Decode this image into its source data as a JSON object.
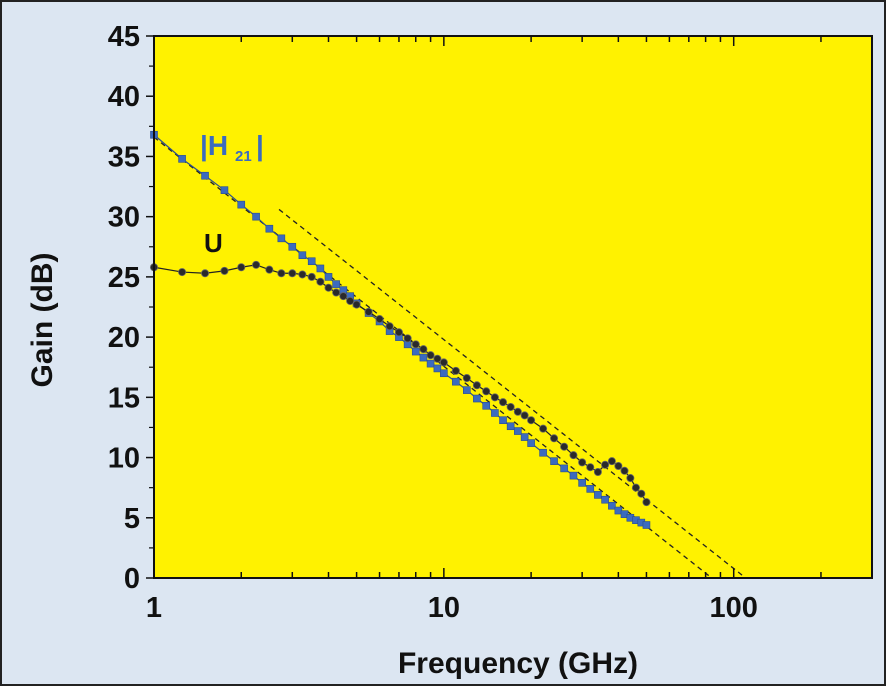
{
  "colors": {
    "background": "#dce6f2",
    "plot_area": "#fff200",
    "h21": "#3b6bbf",
    "u": "#1a1a1a"
  },
  "chart_data": {
    "type": "scatter",
    "title": "",
    "xlabel": "Frequency (GHz)",
    "ylabel": "Gain (dB)",
    "xscale": "log",
    "xlim": [
      1,
      300
    ],
    "ylim": [
      0,
      45
    ],
    "xticks": [
      1,
      10,
      100
    ],
    "xtick_labels": [
      "1",
      "10",
      "100"
    ],
    "yticks": [
      0,
      5,
      10,
      15,
      20,
      25,
      30,
      35,
      40,
      45
    ],
    "ytick_labels": [
      "0",
      "5",
      "10",
      "15",
      "20",
      "25",
      "30",
      "35",
      "40",
      "45"
    ],
    "grid": false,
    "legend": "none",
    "annotations": {
      "h21_label": "|H",
      "h21_sub": "21",
      "u_label": "U"
    },
    "series": [
      {
        "name": "|H21|",
        "marker": "square",
        "x": [
          1.0,
          1.25,
          1.5,
          1.75,
          2.0,
          2.25,
          2.5,
          2.75,
          3.0,
          3.25,
          3.5,
          3.75,
          4.0,
          4.25,
          4.5,
          4.75,
          5.0,
          5.5,
          6.0,
          6.5,
          7.0,
          7.5,
          8.0,
          8.5,
          9.0,
          9.5,
          10.0,
          11.0,
          12.0,
          13.0,
          14.0,
          15.0,
          16.0,
          17.0,
          18.0,
          19.0,
          20.0,
          22.0,
          24.0,
          26.0,
          28.0,
          30.0,
          32.0,
          34.0,
          36.0,
          38.0,
          40.0,
          42.0,
          44.0,
          46.0,
          48.0,
          50.0
        ],
        "y": [
          36.8,
          34.8,
          33.4,
          32.2,
          31.0,
          30.0,
          29.0,
          28.2,
          27.5,
          26.8,
          26.3,
          25.7,
          25.0,
          24.4,
          23.9,
          23.4,
          22.8,
          22.0,
          21.3,
          20.5,
          20.0,
          19.4,
          18.8,
          18.3,
          17.8,
          17.4,
          17.0,
          16.3,
          15.6,
          14.9,
          14.3,
          13.7,
          13.1,
          12.6,
          12.2,
          11.7,
          11.2,
          10.4,
          9.7,
          9.1,
          8.5,
          7.9,
          7.4,
          6.9,
          6.5,
          6.0,
          5.6,
          5.3,
          5.0,
          4.8,
          4.6,
          4.4
        ]
      },
      {
        "name": "U",
        "marker": "circle",
        "x": [
          1.0,
          1.25,
          1.5,
          1.75,
          2.0,
          2.25,
          2.5,
          2.75,
          3.0,
          3.25,
          3.5,
          3.75,
          4.0,
          4.25,
          4.5,
          4.75,
          5.0,
          5.5,
          6.0,
          6.5,
          7.0,
          7.5,
          8.0,
          8.5,
          9.0,
          9.5,
          10.0,
          11.0,
          12.0,
          13.0,
          14.0,
          15.0,
          16.0,
          17.0,
          18.0,
          19.0,
          20.0,
          22.0,
          24.0,
          26.0,
          28.0,
          30.0,
          32.0,
          34.0,
          36.0,
          38.0,
          40.0,
          42.0,
          44.0,
          46.0,
          48.0,
          50.0
        ],
        "y": [
          25.8,
          25.4,
          25.3,
          25.5,
          25.8,
          26.0,
          25.6,
          25.3,
          25.3,
          25.2,
          25.0,
          24.6,
          24.1,
          23.7,
          23.4,
          23.0,
          22.7,
          22.1,
          21.5,
          20.9,
          20.4,
          19.9,
          19.4,
          19.0,
          18.5,
          18.2,
          17.9,
          17.2,
          16.6,
          16.0,
          15.5,
          15.0,
          14.6,
          14.2,
          13.8,
          13.5,
          13.1,
          12.4,
          11.6,
          10.9,
          10.2,
          9.6,
          9.2,
          8.8,
          9.4,
          9.7,
          9.3,
          8.9,
          8.3,
          7.5,
          7.0,
          6.3
        ]
      }
    ],
    "reference_lines": [
      {
        "style": "dashed",
        "x": [
          1,
          84
        ],
        "y": [
          36.6,
          0
        ]
      },
      {
        "style": "dashed",
        "x": [
          2.7,
          110
        ],
        "y": [
          30.6,
          0
        ]
      }
    ]
  }
}
